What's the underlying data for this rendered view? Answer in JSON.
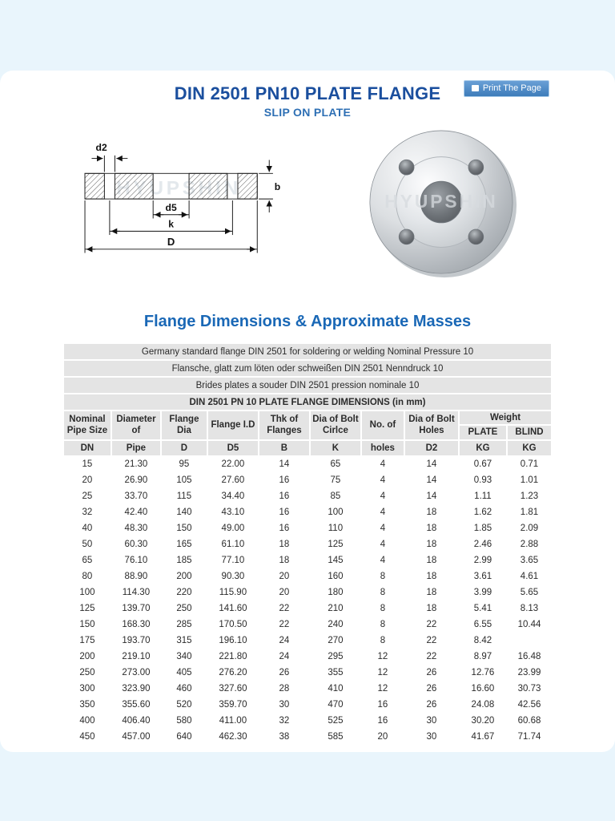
{
  "colors": {
    "title_blue": "#1b4f9e",
    "subtitle_blue": "#2d6fb4",
    "heading_blue": "#1a68b6",
    "button_blue": "#4788c4",
    "band_blue": "#e9f5fc",
    "header_gray": "#e4e4e4"
  },
  "header": {
    "title": "DIN 2501 PN10 PLATE FLANGE",
    "subtitle": "SLIP ON PLATE",
    "print_button_label": "Print The Page"
  },
  "section": {
    "heading": "Flange Dimensions & Approximate Masses"
  },
  "diagram": {
    "watermark": "HYUPSHIN",
    "labels": {
      "d2": "d2",
      "d5": "d5",
      "k": "k",
      "D": "D",
      "b": "b"
    }
  },
  "photo": {
    "watermark": "HYUPSHIN"
  },
  "table": {
    "banners": [
      "Germany standard flange DIN 2501 for soldering or welding Nominal Pressure 10",
      "Flansche, glatt zum löten oder schweißen DIN 2501 Nenndruck 10",
      "Brides plates a souder DIN 2501 pression nominale 10",
      "DIN 2501 PN 10 PLATE FLANGE DIMENSIONS (in mm)"
    ],
    "head": {
      "titles": [
        "Nominal\nPipe Size",
        "Diameter\nof",
        "Flange Dia",
        "Flange I.D",
        "Thk of\nFlanges",
        "Dia of Bolt\nCirlce",
        "No. of",
        "Dia of Bolt\nHoles"
      ],
      "weight": "Weight",
      "plate": "PLATE",
      "blind": "BLIND",
      "units": [
        "DN",
        "Pipe",
        "D",
        "D5",
        "B",
        "K",
        "holes",
        "D2",
        "KG",
        "KG"
      ]
    },
    "rows": [
      [
        "15",
        "21.30",
        "95",
        "22.00",
        "14",
        "65",
        "4",
        "14",
        "0.67",
        "0.71"
      ],
      [
        "20",
        "26.90",
        "105",
        "27.60",
        "16",
        "75",
        "4",
        "14",
        "0.93",
        "1.01"
      ],
      [
        "25",
        "33.70",
        "115",
        "34.40",
        "16",
        "85",
        "4",
        "14",
        "1.11",
        "1.23"
      ],
      [
        "32",
        "42.40",
        "140",
        "43.10",
        "16",
        "100",
        "4",
        "18",
        "1.62",
        "1.81"
      ],
      [
        "40",
        "48.30",
        "150",
        "49.00",
        "16",
        "110",
        "4",
        "18",
        "1.85",
        "2.09"
      ],
      [
        "50",
        "60.30",
        "165",
        "61.10",
        "18",
        "125",
        "4",
        "18",
        "2.46",
        "2.88"
      ],
      [
        "65",
        "76.10",
        "185",
        "77.10",
        "18",
        "145",
        "4",
        "18",
        "2.99",
        "3.65"
      ],
      [
        "80",
        "88.90",
        "200",
        "90.30",
        "20",
        "160",
        "8",
        "18",
        "3.61",
        "4.61"
      ],
      [
        "100",
        "114.30",
        "220",
        "115.90",
        "20",
        "180",
        "8",
        "18",
        "3.99",
        "5.65"
      ],
      [
        "125",
        "139.70",
        "250",
        "141.60",
        "22",
        "210",
        "8",
        "18",
        "5.41",
        "8.13"
      ],
      [
        "150",
        "168.30",
        "285",
        "170.50",
        "22",
        "240",
        "8",
        "22",
        "6.55",
        "10.44"
      ],
      [
        "175",
        "193.70",
        "315",
        "196.10",
        "24",
        "270",
        "8",
        "22",
        "8.42",
        ""
      ],
      [
        "200",
        "219.10",
        "340",
        "221.80",
        "24",
        "295",
        "12",
        "22",
        "8.97",
        "16.48"
      ],
      [
        "250",
        "273.00",
        "405",
        "276.20",
        "26",
        "355",
        "12",
        "26",
        "12.76",
        "23.99"
      ],
      [
        "300",
        "323.90",
        "460",
        "327.60",
        "28",
        "410",
        "12",
        "26",
        "16.60",
        "30.73"
      ],
      [
        "350",
        "355.60",
        "520",
        "359.70",
        "30",
        "470",
        "16",
        "26",
        "24.08",
        "42.56"
      ],
      [
        "400",
        "406.40",
        "580",
        "411.00",
        "32",
        "525",
        "16",
        "30",
        "30.20",
        "60.68"
      ],
      [
        "450",
        "457.00",
        "640",
        "462.30",
        "38",
        "585",
        "20",
        "30",
        "41.67",
        "71.74"
      ]
    ]
  }
}
